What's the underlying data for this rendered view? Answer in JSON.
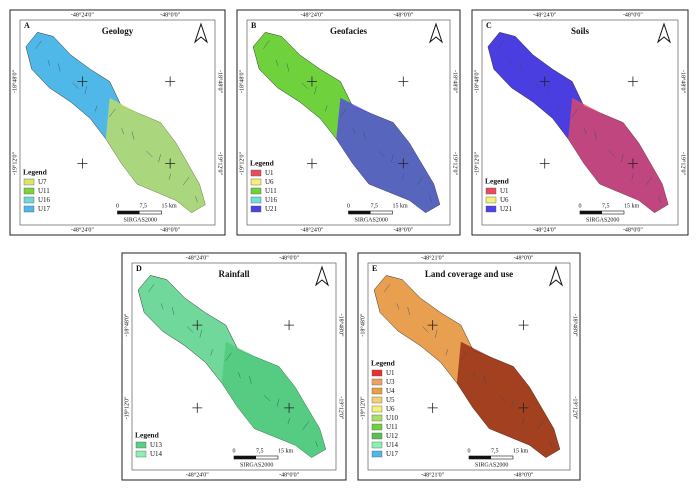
{
  "panels": [
    {
      "letter": "A",
      "title": "Geology",
      "fill": "#4fb8e8",
      "accent": "#c8e05a",
      "coords": {
        "top": [
          "-48°24'0\"",
          "-48°0'0\""
        ],
        "bottom": [
          "-48°24'0\"",
          "-48°0'0\""
        ],
        "left": [
          "-18°48'0\"",
          "-19°12'0\""
        ],
        "right": [
          "-18°48'0\"",
          "-19°12'0\""
        ]
      },
      "legend": {
        "title": "Legend",
        "items": [
          {
            "label": "U7",
            "color": "#d9e86a"
          },
          {
            "label": "U11",
            "color": "#7fd23c"
          },
          {
            "label": "U16",
            "color": "#6ed8d8"
          },
          {
            "label": "U17",
            "color": "#4fb8e8"
          }
        ]
      },
      "scale": {
        "ticks": [
          "0",
          "7,5",
          "15 km"
        ],
        "datum": "SIRGAS2000"
      }
    },
    {
      "letter": "B",
      "title": "Geofacies",
      "fill": "#6fd13c",
      "accent": "#5040e8",
      "coords": {
        "top": [
          "-48°24'0\"",
          "-48°0'0\""
        ],
        "bottom": [
          "-48°24'0\"",
          "-48°0'0\""
        ],
        "left": [
          "-18°48'0\"",
          "-19°12'0\""
        ],
        "right": [
          "-18°48'0\"",
          "-19°12'0\""
        ]
      },
      "legend": {
        "title": "Legend",
        "items": [
          {
            "label": "U1",
            "color": "#e84a5f"
          },
          {
            "label": "U6",
            "color": "#f5f07a"
          },
          {
            "label": "U11",
            "color": "#6fd13c"
          },
          {
            "label": "U16",
            "color": "#6ee0e0"
          },
          {
            "label": "U21",
            "color": "#5040e8"
          }
        ]
      },
      "scale": {
        "ticks": [
          "0",
          "7,5",
          "15 km"
        ],
        "datum": "SIRGAS2000"
      }
    },
    {
      "letter": "C",
      "title": "Soils",
      "fill": "#4a3ee0",
      "accent": "#e84a5f",
      "coords": {
        "top": [
          "-48°24'0\"",
          "-48°0'0\""
        ],
        "bottom": [
          "-48°24'0\"",
          "-48°0'0\""
        ],
        "left": [
          "-18°48'0\"",
          "-19°12'0\""
        ],
        "right": [
          "-18°48'0\"",
          "-19°12'0\""
        ]
      },
      "legend": {
        "title": "Legend",
        "items": [
          {
            "label": "U1",
            "color": "#e84a5f"
          },
          {
            "label": "U6",
            "color": "#f5f07a"
          },
          {
            "label": "U21",
            "color": "#5040e8"
          }
        ]
      },
      "scale": {
        "ticks": [
          "0",
          "7,5",
          "15 km"
        ],
        "datum": "SIRGAS2000"
      }
    },
    {
      "letter": "D",
      "title": "Rainfall",
      "fill": "#6fd89a",
      "accent": "#4cc878",
      "coords": {
        "top": [
          "-48°24'0\"",
          "-48°0'0\""
        ],
        "bottom": [
          "-48°24'0\"",
          "-48°0'0\""
        ],
        "left": [
          "-18°48'0\"",
          "-19°12'0\""
        ],
        "right": [
          "-18°48'0\"",
          "-19°12'0\""
        ]
      },
      "legend": {
        "title": "Legend",
        "items": [
          {
            "label": "U13",
            "color": "#5ccf86"
          },
          {
            "label": "U14",
            "color": "#8ef0b0"
          }
        ]
      },
      "scale": {
        "ticks": [
          "0",
          "7,5",
          "15 km"
        ],
        "datum": "SIRGAS2000"
      }
    },
    {
      "letter": "E",
      "title": "Land coverage and use",
      "fill": "#e8a050",
      "accent": "#8b2010",
      "coords": {
        "top": [
          "-48°21'0\"",
          "-48°0'0\""
        ],
        "bottom": [
          "-48°21'0\"",
          "-48°0'0\""
        ],
        "left": [
          "-18°48'0\"",
          "-19°12'0\""
        ],
        "right": [
          "-18°48'0\"",
          "-19°12'0\""
        ]
      },
      "legend": {
        "title": "Legend",
        "items": [
          {
            "label": "U1",
            "color": "#e83030"
          },
          {
            "label": "U3",
            "color": "#f2a060"
          },
          {
            "label": "U4",
            "color": "#e8a040"
          },
          {
            "label": "U5",
            "color": "#f5d070"
          },
          {
            "label": "U6",
            "color": "#f5f07a"
          },
          {
            "label": "U10",
            "color": "#a8e060"
          },
          {
            "label": "U11",
            "color": "#6fd13c"
          },
          {
            "label": "U12",
            "color": "#5cc050"
          },
          {
            "label": "U14",
            "color": "#8ef0b0"
          },
          {
            "label": "U17",
            "color": "#4fb8e8"
          }
        ]
      },
      "scale": {
        "ticks": [
          "0",
          "7,5",
          "15 km"
        ],
        "datum": "SIRGAS2000"
      }
    }
  ]
}
